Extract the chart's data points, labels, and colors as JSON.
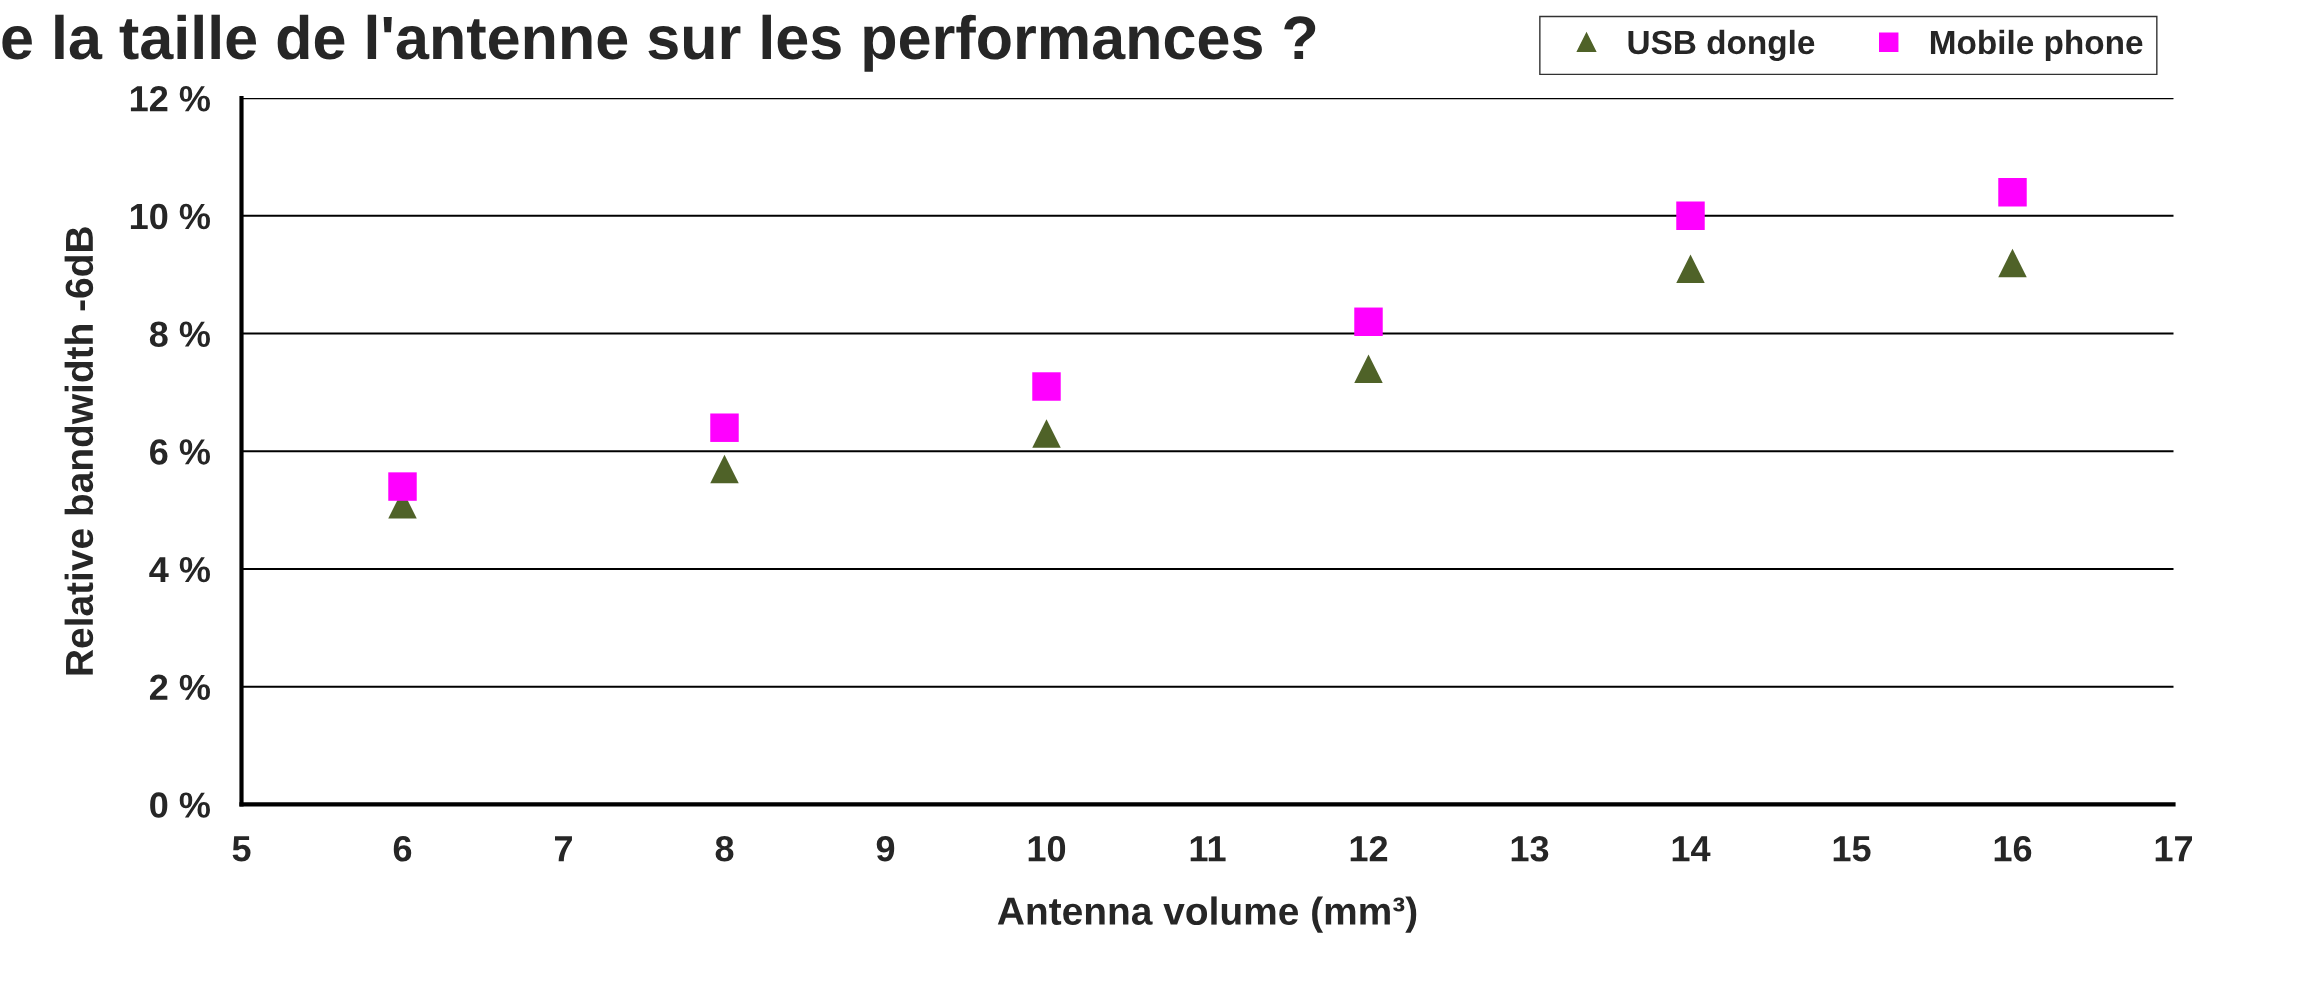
{
  "chart_data": {
    "type": "scatter",
    "title": "e la taille de l'antenne sur les performances ?",
    "xlabel": "Antenna volume (mm³)",
    "ylabel": "Relative bandwidth -6dB",
    "x": [
      6,
      8,
      10,
      12,
      14,
      16
    ],
    "series": [
      {
        "name": "USB dongle",
        "color": "#4f6228",
        "marker": "triangle",
        "values": [
          5.1,
          5.7,
          6.3,
          7.4,
          9.1,
          9.2
        ]
      },
      {
        "name": "Mobile phone",
        "color": "#ff00ff",
        "marker": "square",
        "values": [
          5.4,
          6.4,
          7.1,
          8.2,
          10.0,
          10.4
        ]
      }
    ],
    "xlim": [
      5,
      17
    ],
    "xticks": [
      5,
      6,
      7,
      8,
      9,
      10,
      11,
      12,
      13,
      14,
      15,
      16,
      17
    ],
    "ylim": [
      0,
      12
    ],
    "yticks": [
      {
        "value": 0,
        "label": "0 %"
      },
      {
        "value": 2,
        "label": "2 %"
      },
      {
        "value": 4,
        "label": "4 %"
      },
      {
        "value": 6,
        "label": "6 %"
      },
      {
        "value": 8,
        "label": "8 %"
      },
      {
        "value": 10,
        "label": "10 %"
      },
      {
        "value": 12,
        "label": "12 %"
      }
    ],
    "grid": "y",
    "legend": "top right"
  }
}
